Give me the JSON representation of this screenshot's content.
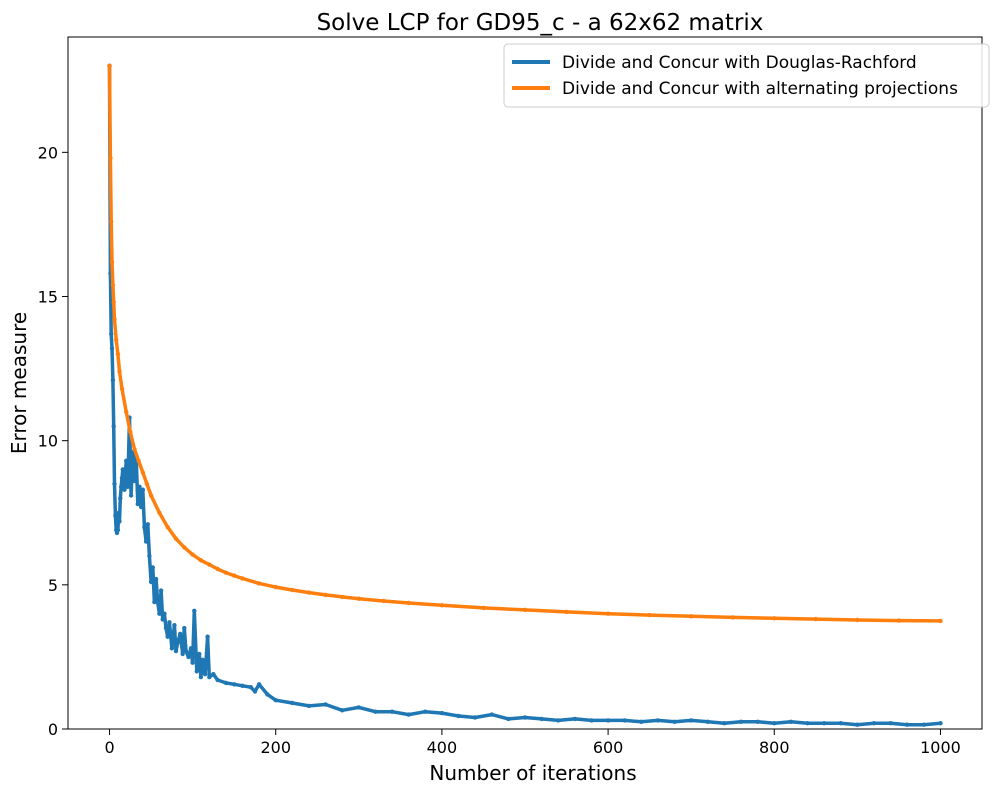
{
  "chart_data": {
    "type": "line",
    "title": "Solve LCP for GD95_c - a 62x62 matrix",
    "xlabel": "Number of iterations",
    "ylabel": "Error measure",
    "xlim": [
      -50,
      1050
    ],
    "ylim": [
      0,
      24
    ],
    "xticks": [
      0,
      200,
      400,
      600,
      800,
      1000
    ],
    "yticks": [
      0,
      5,
      10,
      15,
      20
    ],
    "grid": false,
    "legend_position": "top-right",
    "series": [
      {
        "name": "Divide and Concur with Douglas-Rachford",
        "color": "#1f77b4",
        "x": [
          0,
          1,
          2,
          3,
          4,
          5,
          6,
          7,
          8,
          9,
          10,
          11,
          12,
          13,
          14,
          15,
          16,
          18,
          20,
          22,
          24,
          26,
          28,
          30,
          32,
          34,
          36,
          38,
          40,
          42,
          44,
          46,
          48,
          50,
          52,
          54,
          56,
          58,
          60,
          62,
          64,
          66,
          68,
          70,
          72,
          75,
          78,
          80,
          82,
          85,
          88,
          90,
          92,
          95,
          98,
          100,
          102,
          105,
          108,
          110,
          112,
          115,
          118,
          120,
          125,
          130,
          140,
          150,
          160,
          170,
          175,
          180,
          190,
          200,
          220,
          240,
          260,
          280,
          300,
          320,
          340,
          360,
          380,
          400,
          420,
          440,
          460,
          480,
          500,
          520,
          540,
          560,
          580,
          600,
          620,
          640,
          660,
          680,
          700,
          720,
          740,
          760,
          780,
          800,
          820,
          840,
          860,
          880,
          900,
          920,
          940,
          960,
          980,
          1000
        ],
        "y": [
          23.0,
          15.8,
          13.7,
          13.2,
          12.1,
          10.5,
          8.5,
          7.4,
          6.9,
          6.8,
          6.9,
          7.5,
          7.2,
          8.0,
          8.4,
          8.7,
          9.0,
          8.3,
          9.3,
          8.4,
          10.8,
          8.1,
          9.6,
          8.6,
          9.5,
          7.8,
          8.4,
          7.7,
          8.3,
          7.0,
          6.5,
          7.1,
          6.0,
          5.1,
          5.6,
          4.4,
          5.2,
          4.4,
          4.0,
          4.8,
          3.8,
          4.0,
          3.5,
          3.2,
          3.7,
          2.8,
          3.6,
          2.7,
          3.0,
          3.3,
          2.6,
          3.5,
          2.7,
          2.5,
          2.8,
          2.3,
          4.1,
          2.0,
          2.6,
          1.8,
          2.4,
          1.9,
          3.2,
          1.8,
          1.9,
          1.7,
          1.6,
          1.55,
          1.5,
          1.45,
          1.3,
          1.55,
          1.2,
          1.0,
          0.9,
          0.8,
          0.85,
          0.65,
          0.75,
          0.6,
          0.6,
          0.5,
          0.6,
          0.55,
          0.45,
          0.4,
          0.5,
          0.35,
          0.4,
          0.35,
          0.3,
          0.35,
          0.3,
          0.3,
          0.3,
          0.25,
          0.3,
          0.25,
          0.3,
          0.25,
          0.2,
          0.25,
          0.25,
          0.2,
          0.25,
          0.2,
          0.2,
          0.2,
          0.15,
          0.2,
          0.2,
          0.15,
          0.15,
          0.2
        ]
      },
      {
        "name": "Divide and Concur with alternating projections",
        "color": "#ff7f0e",
        "x": [
          0,
          1,
          2,
          3,
          4,
          5,
          6,
          8,
          10,
          12,
          15,
          20,
          25,
          30,
          35,
          40,
          45,
          50,
          60,
          70,
          80,
          90,
          100,
          110,
          120,
          130,
          140,
          150,
          160,
          180,
          200,
          220,
          240,
          260,
          280,
          300,
          330,
          360,
          400,
          450,
          500,
          550,
          600,
          650,
          700,
          750,
          800,
          850,
          900,
          950,
          1000
        ],
        "y": [
          23.0,
          19.8,
          17.6,
          16.2,
          15.4,
          14.8,
          14.2,
          13.5,
          13.0,
          12.4,
          11.8,
          11.0,
          10.3,
          9.7,
          9.3,
          8.9,
          8.5,
          8.1,
          7.5,
          7.0,
          6.6,
          6.3,
          6.05,
          5.85,
          5.7,
          5.55,
          5.42,
          5.32,
          5.22,
          5.05,
          4.92,
          4.82,
          4.73,
          4.65,
          4.58,
          4.52,
          4.44,
          4.37,
          4.29,
          4.2,
          4.13,
          4.06,
          4.0,
          3.95,
          3.91,
          3.87,
          3.84,
          3.81,
          3.78,
          3.76,
          3.75
        ]
      }
    ]
  }
}
